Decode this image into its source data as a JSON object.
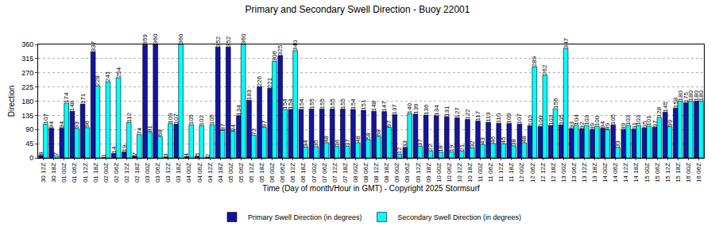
{
  "chart_data": {
    "type": "bar",
    "title": "Primary and Secondary Swell Direction - Buoy 22001",
    "x_label": "Time (Day of month/Hour in GMT) - Copyright 2025 Stormsurf",
    "y_label": "Direction",
    "categories": [
      "30 12Z",
      "30 18Z",
      "01 00Z",
      "01 06Z",
      "01 12Z",
      "01 18Z",
      "02 00Z",
      "02 06Z",
      "02 12Z",
      "02 18Z",
      "03 00Z",
      "03 06Z",
      "03 12Z",
      "03 18Z",
      "04 00Z",
      "04 06Z",
      "04 12Z",
      "04 18Z",
      "05 00Z",
      "05 06Z",
      "05 12Z",
      "05 18Z",
      "06 00Z",
      "06 06Z",
      "06 12Z",
      "06 18Z",
      "07 00Z",
      "07 06Z",
      "07 12Z",
      "07 18Z",
      "08 00Z",
      "08 06Z",
      "08 12Z",
      "08 18Z",
      "09 00Z",
      "09 06Z",
      "09 12Z",
      "09 18Z",
      "10 00Z",
      "10 06Z",
      "10 12Z",
      "10 18Z",
      "11 00Z",
      "11 06Z",
      "11 12Z",
      "11 18Z",
      "12 00Z",
      "12 06Z",
      "12 12Z",
      "12 18Z",
      "13 00Z",
      "13 06Z",
      "13 12Z",
      "13 18Z",
      "14 00Z",
      "14 06Z",
      "14 12Z",
      "14 18Z",
      "15 00Z",
      "15 06Z",
      "15 12Z",
      "15 18Z",
      "16 00Z",
      "16 06Z"
    ],
    "series": [
      {
        "name": "Primary Swell Direction (in degrees)",
        "color": "#1414a0",
        "values": [
          8,
          94,
          94,
          148,
          171,
          337,
          1,
          14,
          19,
          7,
          359,
          360,
          3,
          107,
          4,
          5,
          2,
          352,
          352,
          134,
          183,
          226,
          221,
          325,
          154,
          154,
          155,
          155,
          155,
          155,
          154,
          151,
          148,
          147,
          137,
          33,
          139,
          136,
          134,
          131,
          127,
          122,
          117,
          113,
          110,
          109,
          107,
          102,
          100,
          103,
          105,
          93,
          92,
          89,
          94,
          105,
          89,
          91,
          95,
          97,
          145,
          158,
          175,
          180
        ]
      },
      {
        "name": "Secondary Swell Direction (in degrees)",
        "color": "#00ffff",
        "values": [
          107,
          7,
          174,
          93,
          96,
          228,
          241,
          254,
          112,
          74,
          81,
          68,
          109,
          360,
          105,
          102,
          105,
          87,
          84,
          360,
          72,
          97,
          306,
          154,
          340,
          34,
          35,
          48,
          36,
          37,
          48,
          58,
          68,
          97,
          12,
          140,
          37,
          22,
          18,
          19,
          21,
          32,
          43,
          46,
          45,
          38,
          48,
          289,
          262,
          156,
          347,
          104,
          103,
          100,
          89,
          33,
          103,
          103,
          101,
          128,
          99,
          180,
          180,
          180
        ]
      }
    ],
    "ylim": [
      0,
      360
    ],
    "yticks": [
      0,
      45,
      90,
      135,
      180,
      225,
      270,
      315,
      360
    ],
    "grid": true,
    "legend": "bottom",
    "data_labels": true
  }
}
